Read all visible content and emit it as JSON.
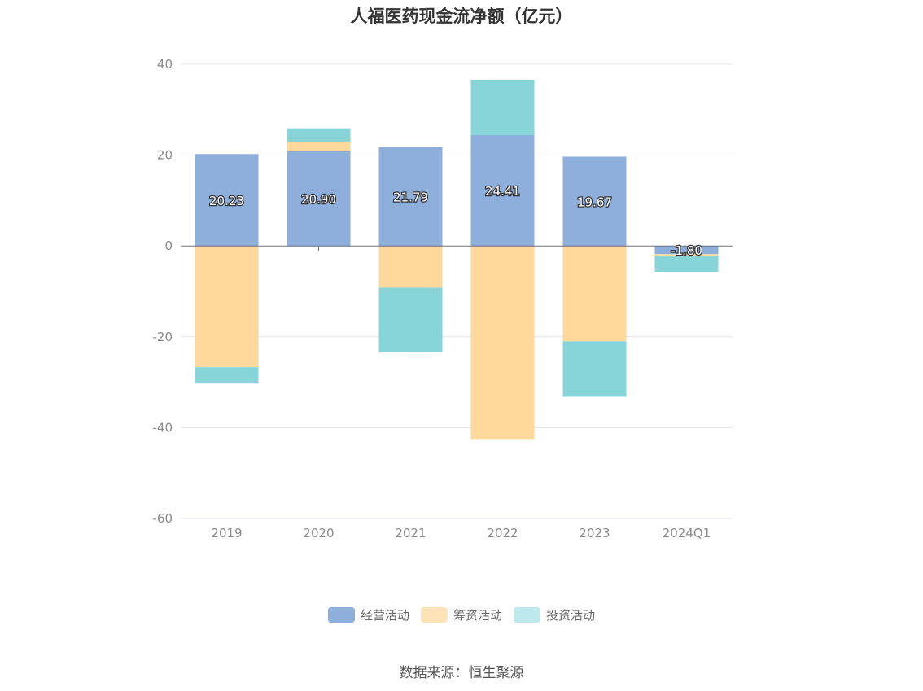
{
  "chart_data": {
    "type": "bar",
    "stacked": true,
    "title": "人福医药现金流净额（亿元）",
    "categories": [
      "2019",
      "2020",
      "2021",
      "2022",
      "2023",
      "2024Q1"
    ],
    "ylim": [
      -60,
      40
    ],
    "yticks": [
      40,
      20,
      0,
      -20,
      -40,
      -60
    ],
    "grid": true,
    "legend_position": "bottom",
    "series": [
      {
        "name": "经营活动",
        "color": "#8eaedb",
        "values": [
          20.23,
          20.9,
          21.79,
          24.41,
          19.67,
          -1.8
        ]
      },
      {
        "name": "筹资活动",
        "color": "#fed99b",
        "values": [
          -26.7,
          2.0,
          -9.2,
          -42.5,
          -21.0,
          -0.3
        ]
      },
      {
        "name": "投资活动",
        "color": "#87d5d9",
        "values": [
          -3.6,
          3.0,
          -14.2,
          12.2,
          -12.2,
          -3.6
        ]
      }
    ],
    "data_labels": [
      "20.23",
      "20.90",
      "21.79",
      "24.41",
      "19.67",
      "-1.80"
    ]
  },
  "legend": {
    "items": [
      {
        "label": "经营活动",
        "color": "#8eaedb"
      },
      {
        "label": "筹资活动",
        "color": "#ffe3b8"
      },
      {
        "label": "投资活动",
        "color": "#bde9ec"
      }
    ]
  },
  "source": "数据来源：恒生聚源"
}
